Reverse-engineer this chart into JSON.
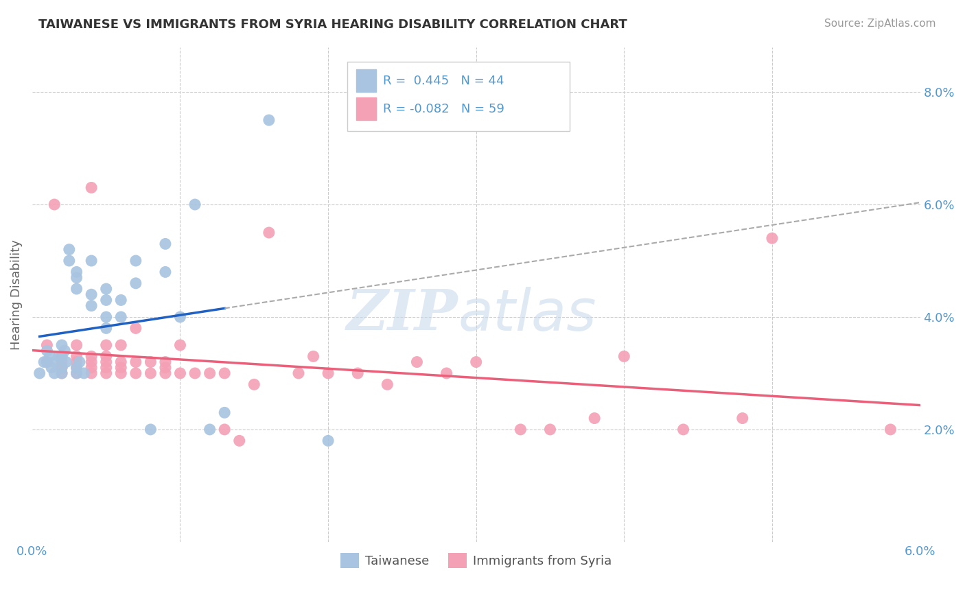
{
  "title": "TAIWANESE VS IMMIGRANTS FROM SYRIA HEARING DISABILITY CORRELATION CHART",
  "source": "Source: ZipAtlas.com",
  "ylabel": "Hearing Disability",
  "xlim": [
    0.0,
    0.06
  ],
  "ylim": [
    0.0,
    0.088
  ],
  "R_taiwanese": 0.445,
  "N_taiwanese": 44,
  "R_syrian": -0.082,
  "N_syrian": 59,
  "color_taiwanese": "#a8c4e0",
  "color_syrian": "#f4a0b5",
  "line_color_taiwanese": "#2060c0",
  "line_color_syrian": "#e8607a",
  "watermark_zip": "ZIP",
  "watermark_atlas": "atlas",
  "legend_labels": [
    "Taiwanese",
    "Immigrants from Syria"
  ],
  "grid_color": "#cccccc",
  "background_color": "#ffffff",
  "title_color": "#333333",
  "source_color": "#999999",
  "tick_color": "#5599cc",
  "taiwanese_x": [
    0.0005,
    0.0008,
    0.001,
    0.001,
    0.0012,
    0.0013,
    0.0015,
    0.0015,
    0.0018,
    0.002,
    0.002,
    0.002,
    0.002,
    0.0022,
    0.0023,
    0.0025,
    0.0025,
    0.003,
    0.003,
    0.003,
    0.003,
    0.003,
    0.0032,
    0.0035,
    0.004,
    0.004,
    0.004,
    0.005,
    0.005,
    0.005,
    0.005,
    0.006,
    0.006,
    0.007,
    0.007,
    0.008,
    0.009,
    0.009,
    0.01,
    0.011,
    0.012,
    0.013,
    0.016,
    0.02
  ],
  "taiwanese_y": [
    0.03,
    0.032,
    0.032,
    0.034,
    0.033,
    0.031,
    0.03,
    0.032,
    0.033,
    0.03,
    0.031,
    0.033,
    0.035,
    0.034,
    0.032,
    0.05,
    0.052,
    0.045,
    0.047,
    0.048,
    0.03,
    0.031,
    0.032,
    0.03,
    0.042,
    0.044,
    0.05,
    0.038,
    0.04,
    0.043,
    0.045,
    0.04,
    0.043,
    0.046,
    0.05,
    0.02,
    0.048,
    0.053,
    0.04,
    0.06,
    0.02,
    0.023,
    0.075,
    0.018
  ],
  "syrian_x": [
    0.001,
    0.001,
    0.0015,
    0.002,
    0.002,
    0.002,
    0.002,
    0.003,
    0.003,
    0.003,
    0.003,
    0.003,
    0.004,
    0.004,
    0.004,
    0.004,
    0.004,
    0.005,
    0.005,
    0.005,
    0.005,
    0.005,
    0.006,
    0.006,
    0.006,
    0.006,
    0.007,
    0.007,
    0.007,
    0.008,
    0.008,
    0.009,
    0.009,
    0.009,
    0.01,
    0.01,
    0.011,
    0.012,
    0.013,
    0.013,
    0.014,
    0.015,
    0.016,
    0.018,
    0.019,
    0.02,
    0.022,
    0.024,
    0.026,
    0.028,
    0.03,
    0.033,
    0.035,
    0.038,
    0.04,
    0.044,
    0.048,
    0.05,
    0.058
  ],
  "syrian_y": [
    0.032,
    0.035,
    0.06,
    0.03,
    0.031,
    0.032,
    0.033,
    0.03,
    0.031,
    0.032,
    0.033,
    0.035,
    0.03,
    0.031,
    0.032,
    0.033,
    0.063,
    0.03,
    0.031,
    0.032,
    0.033,
    0.035,
    0.03,
    0.031,
    0.032,
    0.035,
    0.03,
    0.032,
    0.038,
    0.03,
    0.032,
    0.03,
    0.031,
    0.032,
    0.03,
    0.035,
    0.03,
    0.03,
    0.02,
    0.03,
    0.018,
    0.028,
    0.055,
    0.03,
    0.033,
    0.03,
    0.03,
    0.028,
    0.032,
    0.03,
    0.032,
    0.02,
    0.02,
    0.022,
    0.033,
    0.02,
    0.022,
    0.054,
    0.02
  ],
  "dashed_line_color": "#aaaaaa"
}
